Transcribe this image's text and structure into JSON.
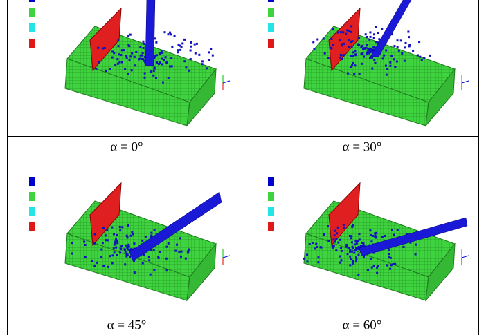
{
  "figure": {
    "captions": [
      "α = 0°",
      "α = 30°",
      "α = 45°",
      "α = 60°"
    ]
  }
}
